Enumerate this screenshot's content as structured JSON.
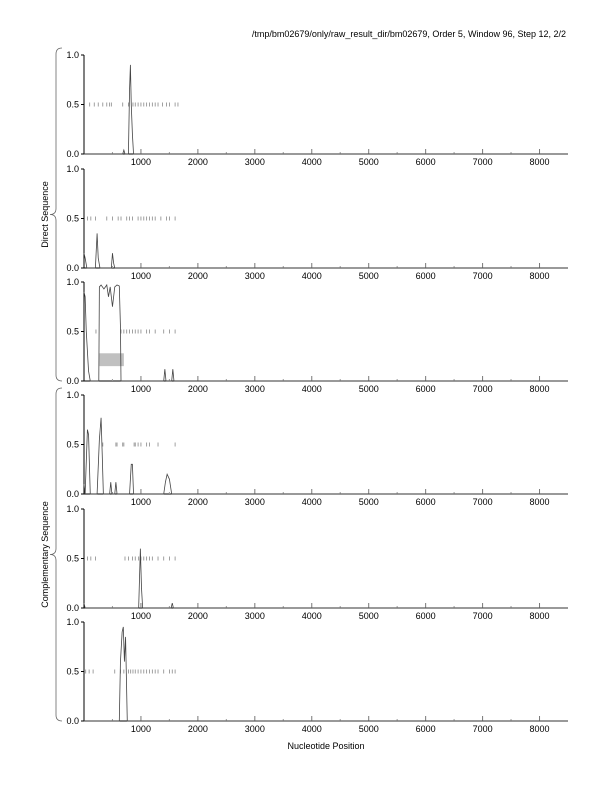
{
  "title": "/tmp/bm02679/only/raw_result_dir/bm02679, Order 5, Window 96, Step 12, 2/2",
  "chart_data": {
    "type": "line",
    "title": "/tmp/bm02679/only/raw_result_dir/bm02679, Order 5, Window 96, Step 12, 2/2",
    "xlabel": "Nucleotide Position",
    "xlim": [
      0,
      8500
    ],
    "ylim": [
      0,
      1
    ],
    "xticks": [
      1000,
      2000,
      3000,
      4000,
      5000,
      6000,
      7000,
      8000
    ],
    "xtick_labels": [
      "1000",
      "2000",
      "3000",
      "4000",
      "5000",
      "6000",
      "7000",
      "8000"
    ],
    "yticks": [
      0,
      0.5,
      1
    ],
    "ytick_labels": [
      "0.0",
      "0.5",
      "1.0"
    ],
    "grid": false,
    "groups": [
      {
        "label": "Direct Sequence",
        "panels": [
          0,
          1,
          2
        ]
      },
      {
        "label": "Complementary Sequence",
        "panels": [
          3,
          4,
          5
        ]
      }
    ],
    "panels": [
      {
        "curve": [
          [
            0,
            0
          ],
          [
            680,
            0
          ],
          [
            700,
            0.04
          ],
          [
            720,
            0
          ],
          [
            780,
            0
          ],
          [
            800,
            0.65
          ],
          [
            815,
            0.9
          ],
          [
            830,
            0.5
          ],
          [
            850,
            0.2
          ],
          [
            870,
            0
          ],
          [
            8500,
            0
          ]
        ],
        "orf_marks": [
          100,
          180,
          250,
          330,
          400,
          450,
          480,
          680,
          780,
          860,
          900,
          950,
          1000,
          1050,
          1100,
          1150,
          1200,
          1250,
          1300,
          1380,
          1450,
          1500,
          1600,
          1650
        ]
      },
      {
        "curve": [
          [
            0,
            0.15
          ],
          [
            20,
            0.1
          ],
          [
            50,
            0
          ],
          [
            200,
            0
          ],
          [
            230,
            0.35
          ],
          [
            250,
            0.1
          ],
          [
            280,
            0
          ],
          [
            480,
            0
          ],
          [
            500,
            0.15
          ],
          [
            520,
            0.05
          ],
          [
            540,
            0
          ],
          [
            8500,
            0
          ]
        ],
        "orf_marks": [
          60,
          120,
          200,
          400,
          500,
          600,
          650,
          750,
          800,
          850,
          950,
          1000,
          1050,
          1100,
          1150,
          1200,
          1250,
          1350,
          1450,
          1500,
          1600
        ]
      },
      {
        "curve": [
          [
            0,
            0.9
          ],
          [
            20,
            0.85
          ],
          [
            40,
            0.5
          ],
          [
            80,
            0.1
          ],
          [
            110,
            0
          ],
          [
            260,
            0
          ],
          [
            270,
            0.95
          ],
          [
            300,
            0.97
          ],
          [
            350,
            0.93
          ],
          [
            400,
            0.97
          ],
          [
            430,
            0.85
          ],
          [
            460,
            0.95
          ],
          [
            500,
            0.75
          ],
          [
            540,
            0.95
          ],
          [
            580,
            0.97
          ],
          [
            620,
            0.96
          ],
          [
            640,
            0.55
          ],
          [
            650,
            0
          ],
          [
            1400,
            0
          ],
          [
            1420,
            0.12
          ],
          [
            1440,
            0
          ],
          [
            1540,
            0
          ],
          [
            1560,
            0.12
          ],
          [
            1580,
            0
          ],
          [
            8500,
            0
          ]
        ],
        "orf_marks": [
          210,
          650,
          700,
          750,
          800,
          850,
          900,
          950,
          1000,
          1100,
          1150,
          1250,
          1400,
          1500,
          1600
        ],
        "region": {
          "x": [
            270,
            700
          ],
          "y": [
            0.15,
            0.28
          ],
          "color": "#c0c0c0"
        }
      },
      {
        "curve": [
          [
            0,
            0.1
          ],
          [
            20,
            0
          ],
          [
            60,
            0.65
          ],
          [
            80,
            0.6
          ],
          [
            110,
            0
          ],
          [
            230,
            0
          ],
          [
            270,
            0.55
          ],
          [
            300,
            0.77
          ],
          [
            320,
            0.4
          ],
          [
            340,
            0
          ],
          [
            450,
            0
          ],
          [
            470,
            0.12
          ],
          [
            490,
            0
          ],
          [
            540,
            0
          ],
          [
            560,
            0.12
          ],
          [
            580,
            0
          ],
          [
            800,
            0
          ],
          [
            830,
            0.3
          ],
          [
            850,
            0.3
          ],
          [
            870,
            0
          ],
          [
            1400,
            0
          ],
          [
            1430,
            0.12
          ],
          [
            1460,
            0.2
          ],
          [
            1500,
            0.15
          ],
          [
            1540,
            0
          ],
          [
            8500,
            0
          ]
        ],
        "orf_marks": [
          330,
          560,
          580,
          680,
          700,
          880,
          900,
          950,
          1000,
          1100,
          1150,
          1300,
          1600
        ]
      },
      {
        "curve": [
          [
            0,
            0.05
          ],
          [
            20,
            0
          ],
          [
            960,
            0
          ],
          [
            990,
            0.6
          ],
          [
            1010,
            0.2
          ],
          [
            1030,
            0
          ],
          [
            1530,
            0
          ],
          [
            1550,
            0.05
          ],
          [
            1570,
            0
          ],
          [
            8500,
            0
          ]
        ],
        "orf_marks": [
          60,
          120,
          200,
          720,
          780,
          850,
          900,
          960,
          1000,
          1050,
          1100,
          1150,
          1200,
          1300,
          1400,
          1500,
          1600
        ]
      },
      {
        "curve": [
          [
            0,
            0
          ],
          [
            620,
            0
          ],
          [
            640,
            0.6
          ],
          [
            670,
            0.9
          ],
          [
            690,
            0.95
          ],
          [
            710,
            0.6
          ],
          [
            730,
            0.85
          ],
          [
            760,
            0
          ],
          [
            8500,
            0
          ]
        ],
        "orf_marks": [
          30,
          90,
          160,
          540,
          640,
          700,
          780,
          820,
          860,
          900,
          950,
          1000,
          1050,
          1100,
          1150,
          1200,
          1250,
          1300,
          1400,
          1500,
          1550,
          1600
        ]
      }
    ]
  }
}
